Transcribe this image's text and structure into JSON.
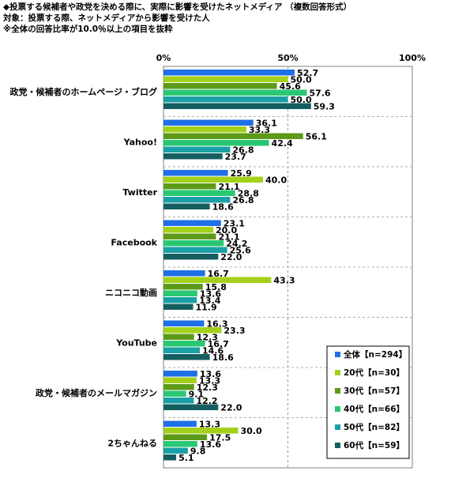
{
  "header": {
    "title": "◆投票する候補者や政党を決める際に、実際に影響を受けたネットメディア （複数回答形式）",
    "target": "対象：投票する際、ネットメディアから影響を受けた人",
    "note": "※全体の回答比率が10.0％以上の項目を抜粋"
  },
  "chart_data": {
    "type": "bar",
    "orientation": "horizontal",
    "xlim": [
      0,
      100
    ],
    "x_ticks": [
      "0%",
      "50%",
      "100%"
    ],
    "categories": [
      "政党・候補者のホームページ・ブログ",
      "Yahoo!",
      "Twitter",
      "Facebook",
      "ニコニコ動画",
      "YouTube",
      "政党・候補者のメールマガジン",
      "2ちゃんねる"
    ],
    "series": [
      {
        "name": "全体【n=294】",
        "color": "#1f6fe6",
        "values": [
          52.7,
          36.1,
          25.9,
          23.1,
          16.7,
          16.3,
          13.6,
          13.3
        ]
      },
      {
        "name": "20代【n=30】",
        "color": "#a3d11b",
        "values": [
          50.0,
          33.3,
          40.0,
          20.0,
          43.3,
          23.3,
          13.3,
          30.0
        ]
      },
      {
        "name": "30代【n=57】",
        "color": "#5e9a1a",
        "values": [
          45.6,
          56.1,
          21.1,
          21.1,
          15.8,
          12.3,
          12.3,
          17.5
        ]
      },
      {
        "name": "40代【n=66】",
        "color": "#29c772",
        "values": [
          57.6,
          42.4,
          28.8,
          24.2,
          13.6,
          16.7,
          9.1,
          13.6
        ]
      },
      {
        "name": "50代【n=82】",
        "color": "#1aa0a6",
        "values": [
          50.0,
          26.8,
          26.8,
          25.6,
          13.4,
          14.6,
          12.2,
          9.8
        ]
      },
      {
        "name": "60代【n=59】",
        "color": "#145e60",
        "values": [
          59.3,
          23.7,
          18.6,
          22.0,
          11.9,
          18.6,
          22.0,
          5.1
        ]
      }
    ],
    "legend_position": "bottom-right",
    "grid": "vertical dashed at 50%"
  }
}
